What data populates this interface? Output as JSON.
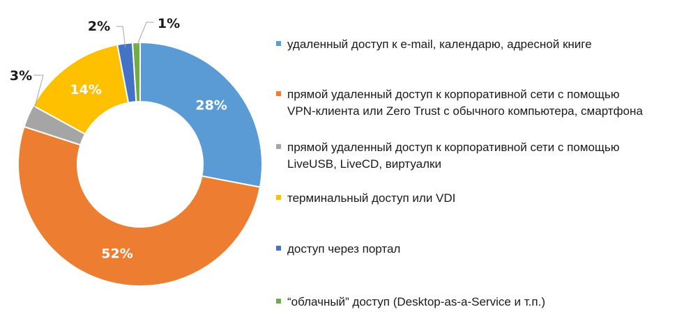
{
  "chart_data": {
    "type": "pie",
    "variant": "donut",
    "title": "",
    "categories": [
      "удаленный доступ к e-mail, календарю, адресной книге",
      "прямой удаленный доступ к корпоративной сети с помощью VPN-клиента или Zero Trust с обычного компьютера, смартфона",
      "прямой удаленный доступ к корпоративной сети с помощью LiveUSB, LiveCD, виртуалки",
      "терминальный доступ или VDI",
      "доступ через портал",
      "“облачный” доступ (Desktop-as-a-Service и т.п.)"
    ],
    "values": [
      28,
      52,
      3,
      14,
      2,
      1
    ],
    "labels": [
      "28%",
      "52%",
      "3%",
      "14%",
      "2%",
      "1%"
    ],
    "colors": [
      "#5b9bd5",
      "#ed7d31",
      "#a5a5a5",
      "#ffc000",
      "#4472c4",
      "#70ad47"
    ],
    "legend_position": "right"
  },
  "legend": {
    "lines": [
      [
        "удаленный доступ к e-mail, календарю, адресной книге"
      ],
      [
        "прямой удаленный доступ к корпоративной сети с помощью",
        "VPN-клиента или Zero Trust с обычного компьютера, смартфона"
      ],
      [
        "прямой удаленный доступ к корпоративной сети с помощью",
        "LiveUSB, LiveCD, виртуалки"
      ],
      [
        "терминальный доступ или VDI"
      ],
      [
        "доступ через портал"
      ],
      [
        "“облачный” доступ (Desktop-as-a-Service и т.п.)"
      ]
    ]
  }
}
